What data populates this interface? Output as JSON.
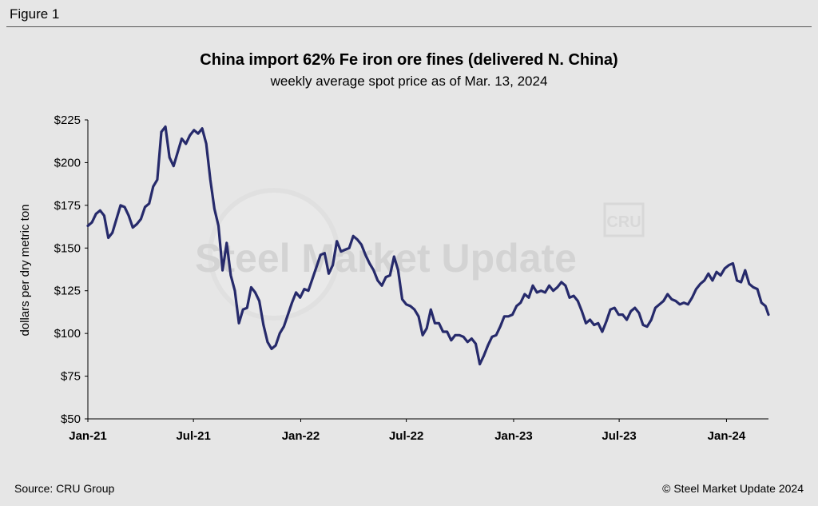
{
  "figure_label": "Figure 1",
  "source": "Source: CRU Group",
  "credit": "© Steel Market Update 2024",
  "watermark": {
    "brand": "Steel Market Update",
    "badge": "CRU"
  },
  "colors": {
    "line": "#262a6b",
    "background": "#e6e6e6"
  },
  "chart_data": {
    "type": "line",
    "title": "China import 62% Fe iron ore fines (delivered N. China)",
    "subtitle": "weekly average spot price as of Mar. 13, 2024",
    "ylabel": "dollars per dry metric ton",
    "xlabel": "",
    "ylim": [
      50,
      225
    ],
    "yticks": [
      50,
      75,
      100,
      125,
      150,
      175,
      200,
      225
    ],
    "ytick_labels": [
      "$50",
      "$75",
      "$100",
      "$125",
      "$150",
      "$175",
      "$200",
      "$225"
    ],
    "xticks": [
      "2021-01-01",
      "2021-07-01",
      "2022-01-01",
      "2022-07-01",
      "2023-01-01",
      "2023-07-01",
      "2024-01-01"
    ],
    "xtick_labels": [
      "Jan-21",
      "Jul-21",
      "Jan-22",
      "Jul-22",
      "Jan-23",
      "Jul-23",
      "Jan-24"
    ],
    "xlim": [
      "2021-01-01",
      "2024-03-13"
    ],
    "grid": false,
    "series": [
      {
        "values": [
          [
            "2021-01-01",
            163
          ],
          [
            "2021-01-08",
            165
          ],
          [
            "2021-01-15",
            170
          ],
          [
            "2021-01-22",
            172
          ],
          [
            "2021-01-29",
            169
          ],
          [
            "2021-02-05",
            156
          ],
          [
            "2021-02-12",
            159
          ],
          [
            "2021-02-19",
            167
          ],
          [
            "2021-02-26",
            175
          ],
          [
            "2021-03-05",
            174
          ],
          [
            "2021-03-12",
            169
          ],
          [
            "2021-03-19",
            162
          ],
          [
            "2021-03-26",
            164
          ],
          [
            "2021-04-02",
            167
          ],
          [
            "2021-04-09",
            174
          ],
          [
            "2021-04-16",
            176
          ],
          [
            "2021-04-23",
            186
          ],
          [
            "2021-04-30",
            190
          ],
          [
            "2021-05-07",
            218
          ],
          [
            "2021-05-14",
            221
          ],
          [
            "2021-05-21",
            203
          ],
          [
            "2021-05-28",
            198
          ],
          [
            "2021-06-04",
            206
          ],
          [
            "2021-06-11",
            214
          ],
          [
            "2021-06-18",
            211
          ],
          [
            "2021-06-25",
            216
          ],
          [
            "2021-07-02",
            219
          ],
          [
            "2021-07-09",
            217
          ],
          [
            "2021-07-16",
            220
          ],
          [
            "2021-07-23",
            211
          ],
          [
            "2021-07-30",
            190
          ],
          [
            "2021-08-06",
            173
          ],
          [
            "2021-08-13",
            163
          ],
          [
            "2021-08-20",
            137
          ],
          [
            "2021-08-27",
            153
          ],
          [
            "2021-09-03",
            134
          ],
          [
            "2021-09-10",
            125
          ],
          [
            "2021-09-17",
            106
          ],
          [
            "2021-09-24",
            114
          ],
          [
            "2021-10-01",
            115
          ],
          [
            "2021-10-08",
            127
          ],
          [
            "2021-10-15",
            124
          ],
          [
            "2021-10-22",
            119
          ],
          [
            "2021-10-29",
            105
          ],
          [
            "2021-11-05",
            95
          ],
          [
            "2021-11-12",
            91
          ],
          [
            "2021-11-19",
            93
          ],
          [
            "2021-11-26",
            100
          ],
          [
            "2021-12-03",
            104
          ],
          [
            "2021-12-10",
            111
          ],
          [
            "2021-12-17",
            118
          ],
          [
            "2021-12-24",
            124
          ],
          [
            "2021-12-31",
            121
          ],
          [
            "2022-01-07",
            126
          ],
          [
            "2022-01-14",
            125
          ],
          [
            "2022-01-21",
            132
          ],
          [
            "2022-01-28",
            139
          ],
          [
            "2022-02-04",
            146
          ],
          [
            "2022-02-11",
            147
          ],
          [
            "2022-02-18",
            135
          ],
          [
            "2022-02-25",
            140
          ],
          [
            "2022-03-04",
            154
          ],
          [
            "2022-03-11",
            148
          ],
          [
            "2022-03-18",
            149
          ],
          [
            "2022-03-25",
            150
          ],
          [
            "2022-04-01",
            157
          ],
          [
            "2022-04-08",
            155
          ],
          [
            "2022-04-15",
            152
          ],
          [
            "2022-04-22",
            146
          ],
          [
            "2022-04-29",
            141
          ],
          [
            "2022-05-06",
            137
          ],
          [
            "2022-05-13",
            131
          ],
          [
            "2022-05-20",
            128
          ],
          [
            "2022-05-27",
            133
          ],
          [
            "2022-06-03",
            134
          ],
          [
            "2022-06-10",
            145
          ],
          [
            "2022-06-17",
            137
          ],
          [
            "2022-06-24",
            120
          ],
          [
            "2022-07-01",
            117
          ],
          [
            "2022-07-08",
            116
          ],
          [
            "2022-07-15",
            114
          ],
          [
            "2022-07-22",
            110
          ],
          [
            "2022-07-29",
            99
          ],
          [
            "2022-08-05",
            103
          ],
          [
            "2022-08-12",
            114
          ],
          [
            "2022-08-19",
            106
          ],
          [
            "2022-08-26",
            106
          ],
          [
            "2022-09-02",
            101
          ],
          [
            "2022-09-09",
            101
          ],
          [
            "2022-09-16",
            96
          ],
          [
            "2022-09-23",
            99
          ],
          [
            "2022-09-30",
            99
          ],
          [
            "2022-10-07",
            98
          ],
          [
            "2022-10-14",
            95
          ],
          [
            "2022-10-21",
            97
          ],
          [
            "2022-10-28",
            94
          ],
          [
            "2022-11-04",
            82
          ],
          [
            "2022-11-11",
            87
          ],
          [
            "2022-11-18",
            93
          ],
          [
            "2022-11-25",
            98
          ],
          [
            "2022-12-02",
            99
          ],
          [
            "2022-12-09",
            104
          ],
          [
            "2022-12-16",
            110
          ],
          [
            "2022-12-23",
            110
          ],
          [
            "2022-12-30",
            111
          ],
          [
            "2023-01-06",
            116
          ],
          [
            "2023-01-13",
            118
          ],
          [
            "2023-01-20",
            123
          ],
          [
            "2023-01-27",
            121
          ],
          [
            "2023-02-03",
            128
          ],
          [
            "2023-02-10",
            124
          ],
          [
            "2023-02-17",
            125
          ],
          [
            "2023-02-24",
            124
          ],
          [
            "2023-03-03",
            128
          ],
          [
            "2023-03-10",
            125
          ],
          [
            "2023-03-17",
            127
          ],
          [
            "2023-03-24",
            130
          ],
          [
            "2023-03-31",
            128
          ],
          [
            "2023-04-07",
            121
          ],
          [
            "2023-04-14",
            122
          ],
          [
            "2023-04-21",
            119
          ],
          [
            "2023-04-28",
            113
          ],
          [
            "2023-05-05",
            106
          ],
          [
            "2023-05-12",
            108
          ],
          [
            "2023-05-19",
            105
          ],
          [
            "2023-05-26",
            106
          ],
          [
            "2023-06-02",
            101
          ],
          [
            "2023-06-09",
            107
          ],
          [
            "2023-06-16",
            114
          ],
          [
            "2023-06-23",
            115
          ],
          [
            "2023-06-30",
            111
          ],
          [
            "2023-07-07",
            111
          ],
          [
            "2023-07-14",
            108
          ],
          [
            "2023-07-21",
            113
          ],
          [
            "2023-07-28",
            115
          ],
          [
            "2023-08-04",
            112
          ],
          [
            "2023-08-11",
            105
          ],
          [
            "2023-08-18",
            104
          ],
          [
            "2023-08-25",
            108
          ],
          [
            "2023-09-01",
            115
          ],
          [
            "2023-09-08",
            117
          ],
          [
            "2023-09-15",
            119
          ],
          [
            "2023-09-22",
            123
          ],
          [
            "2023-09-29",
            120
          ],
          [
            "2023-10-06",
            119
          ],
          [
            "2023-10-13",
            117
          ],
          [
            "2023-10-20",
            118
          ],
          [
            "2023-10-27",
            117
          ],
          [
            "2023-11-03",
            121
          ],
          [
            "2023-11-10",
            126
          ],
          [
            "2023-11-17",
            129
          ],
          [
            "2023-11-24",
            131
          ],
          [
            "2023-12-01",
            135
          ],
          [
            "2023-12-08",
            131
          ],
          [
            "2023-12-15",
            136
          ],
          [
            "2023-12-22",
            134
          ],
          [
            "2023-12-29",
            138
          ],
          [
            "2024-01-05",
            140
          ],
          [
            "2024-01-12",
            141
          ],
          [
            "2024-01-19",
            131
          ],
          [
            "2024-01-26",
            130
          ],
          [
            "2024-02-02",
            137
          ],
          [
            "2024-02-09",
            129
          ],
          [
            "2024-02-16",
            127
          ],
          [
            "2024-02-23",
            126
          ],
          [
            "2024-03-01",
            118
          ],
          [
            "2024-03-08",
            116
          ],
          [
            "2024-03-13",
            111
          ]
        ]
      }
    ]
  }
}
